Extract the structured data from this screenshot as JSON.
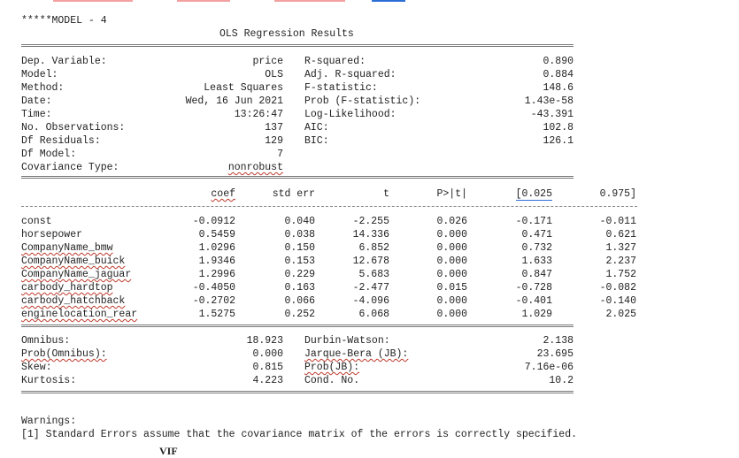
{
  "header": {
    "model_label": "*****MODEL - 4",
    "title": "OLS Regression Results"
  },
  "summary": {
    "left": [
      {
        "label": "Dep. Variable:",
        "value": "price"
      },
      {
        "label": "Model:",
        "value": "OLS"
      },
      {
        "label": "Method:",
        "value": "Least Squares"
      },
      {
        "label": "Date:",
        "value": "Wed, 16 Jun 2021"
      },
      {
        "label": "Time:",
        "value": "13:26:47"
      },
      {
        "label": "No. Observations:",
        "value": "137"
      },
      {
        "label": "Df Residuals:",
        "value": "129"
      },
      {
        "label": "Df Model:",
        "value": "7"
      },
      {
        "label": "Covariance Type:",
        "value": "nonrobust"
      }
    ],
    "right": [
      {
        "label": "R-squared:",
        "value": "0.890"
      },
      {
        "label": "Adj. R-squared:",
        "value": "0.884"
      },
      {
        "label": "F-statistic:",
        "value": "148.6"
      },
      {
        "label": "Prob (F-statistic):",
        "value": "1.43e-58"
      },
      {
        "label": "Log-Likelihood:",
        "value": "-43.391"
      },
      {
        "label": "AIC:",
        "value": "102.8"
      },
      {
        "label": "BIC:",
        "value": "126.1"
      }
    ]
  },
  "coef_table": {
    "headers": [
      "coef",
      "std err",
      "t",
      "P>|t|",
      "[0.025",
      "0.975]"
    ],
    "rows": [
      {
        "name": "const",
        "values": [
          "-0.0912",
          "0.040",
          "-2.255",
          "0.026",
          "-0.171",
          "-0.011"
        ]
      },
      {
        "name": "horsepower",
        "values": [
          "0.5459",
          "0.038",
          "14.336",
          "0.000",
          "0.471",
          "0.621"
        ]
      },
      {
        "name": "CompanyName_bmw",
        "values": [
          "1.0296",
          "0.150",
          "6.852",
          "0.000",
          "0.732",
          "1.327"
        ]
      },
      {
        "name": "CompanyName_buick",
        "values": [
          "1.9346",
          "0.153",
          "12.678",
          "0.000",
          "1.633",
          "2.237"
        ]
      },
      {
        "name": "CompanyName_jaguar",
        "values": [
          "1.2996",
          "0.229",
          "5.683",
          "0.000",
          "0.847",
          "1.752"
        ]
      },
      {
        "name": "carbody_hardtop",
        "values": [
          "-0.4050",
          "0.163",
          "-2.477",
          "0.015",
          "-0.728",
          "-0.082"
        ]
      },
      {
        "name": "carbody_hatchback",
        "values": [
          "-0.2702",
          "0.066",
          "-4.096",
          "0.000",
          "-0.401",
          "-0.140"
        ]
      },
      {
        "name": "enginelocation_rear",
        "values": [
          "1.5275",
          "0.252",
          "6.068",
          "0.000",
          "1.029",
          "2.025"
        ]
      }
    ]
  },
  "diagnostics": {
    "left": [
      {
        "label": "Omnibus:",
        "value": "18.923"
      },
      {
        "label": "Prob(Omnibus):",
        "value": "0.000"
      },
      {
        "label": "Skew:",
        "value": "0.815"
      },
      {
        "label": "Kurtosis:",
        "value": "4.223"
      }
    ],
    "right": [
      {
        "label": "Durbin-Watson:",
        "value": "2.138"
      },
      {
        "label": "Jarque-Bera (JB):",
        "value": "23.695"
      },
      {
        "label": "Prob(JB):",
        "value": "7.16e-06"
      },
      {
        "label": "Cond. No.",
        "value": "10.2"
      }
    ]
  },
  "warnings": {
    "title": "Warnings:",
    "lines": [
      "[1] Standard Errors assume that the covariance matrix of the errors is correctly specified."
    ]
  },
  "footer_fragment": "VIF"
}
